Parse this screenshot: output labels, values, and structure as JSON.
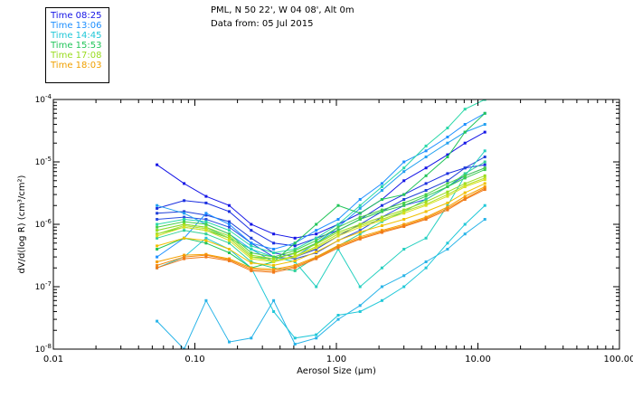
{
  "header": {
    "site": "PML, N 50 22', W 04 08', Alt 0m",
    "date": "Data from: 05 Jul 2015"
  },
  "legend": [
    {
      "label": "Time 08:25",
      "color": "#1414e6"
    },
    {
      "label": "Time 13:06",
      "color": "#1e90ff"
    },
    {
      "label": "Time 14:45",
      "color": "#20c8d8"
    },
    {
      "label": "Time 15:53",
      "color": "#22c55a"
    },
    {
      "label": "Time 17:08",
      "color": "#9adc1e"
    },
    {
      "label": "Time 18:03",
      "color": "#f0a000"
    }
  ],
  "chart_data": {
    "type": "line",
    "title": "",
    "xlabel": "Aerosol Size (μm)",
    "ylabel": "dV/d(log R) (cm³/cm²)",
    "xscale": "log",
    "yscale": "log",
    "xlim": [
      0.01,
      100
    ],
    "ylim": [
      1e-08,
      0.0001
    ],
    "xtick_labels": [
      "0.01",
      "0.10",
      "1.00",
      "10.00",
      "100.00"
    ],
    "ytick_labels": [
      {
        "base": "10",
        "exp": "-8"
      },
      {
        "base": "10",
        "exp": "-7"
      },
      {
        "base": "10",
        "exp": "-6"
      },
      {
        "base": "10",
        "exp": "-5"
      },
      {
        "base": "10",
        "exp": "-4"
      }
    ],
    "x": [
      0.054,
      0.084,
      0.12,
      0.175,
      0.25,
      0.36,
      0.51,
      0.72,
      1.03,
      1.47,
      2.1,
      3.0,
      4.3,
      6.1,
      8.1,
      11.2
    ],
    "series": [
      {
        "name": "Time 08:25",
        "color": "#1414e6",
        "values": [
          9e-06,
          4.5e-06,
          2.8e-06,
          2e-06,
          1e-06,
          7e-07,
          6e-07,
          7e-07,
          1e-06,
          1.5e-06,
          2.5e-06,
          5e-06,
          8e-06,
          1.3e-05,
          2e-05,
          3e-05
        ]
      },
      {
        "name": "Time 08:25",
        "color": "#1a2ee0",
        "values": [
          1.8e-06,
          2.4e-06,
          2.2e-06,
          1.6e-06,
          8e-07,
          5e-07,
          4.5e-07,
          6e-07,
          8e-07,
          1.2e-06,
          2e-06,
          3e-06,
          4.5e-06,
          6.5e-06,
          8e-06,
          9e-06
        ]
      },
      {
        "name": "Time 08:25",
        "color": "#2040d8",
        "values": [
          1.5e-06,
          1.6e-06,
          1.4e-06,
          1.1e-06,
          6e-07,
          3.5e-07,
          3e-07,
          4e-07,
          6.5e-07,
          1e-06,
          1.6e-06,
          2.5e-06,
          3.5e-06,
          5e-06,
          8e-06,
          1.2e-05
        ]
      },
      {
        "name": "Time 08:25",
        "color": "#2c4fe0",
        "values": [
          1.2e-06,
          1.3e-06,
          1.2e-06,
          9e-07,
          5e-07,
          3e-07,
          2.8e-07,
          3.5e-07,
          5.5e-07,
          8e-07,
          1.3e-06,
          2e-06,
          2.5e-06,
          4e-06,
          6e-06,
          8e-06
        ]
      },
      {
        "name": "Time 13:06",
        "color": "#1e90ff",
        "values": [
          3e-07,
          6e-07,
          1.5e-06,
          1e-06,
          5e-07,
          4e-07,
          5e-07,
          8e-07,
          1.2e-06,
          2.5e-06,
          4.5e-06,
          1e-05,
          1.5e-05,
          2.5e-05,
          4e-05,
          6e-05
        ]
      },
      {
        "name": "Time 13:06",
        "color": "#22a0f0",
        "values": [
          2e-06,
          1.5e-06,
          1e-06,
          7e-07,
          4e-07,
          2.5e-07,
          3e-07,
          5e-07,
          9e-07,
          1.8e-06,
          3.5e-06,
          7e-06,
          1.2e-05,
          2e-05,
          3e-05,
          4e-05
        ]
      },
      {
        "name": "Time 13:06",
        "color": "#28b4e8",
        "values": [
          2.8e-08,
          1e-08,
          6e-08,
          1.3e-08,
          1.5e-08,
          6e-08,
          1.2e-08,
          1.5e-08,
          3e-08,
          5e-08,
          1e-07,
          1.5e-07,
          2.5e-07,
          4e-07,
          7e-07,
          1.2e-06
        ]
      },
      {
        "name": "Time 14:45",
        "color": "#20c8d8",
        "values": [
          2e-07,
          3e-07,
          6e-07,
          4e-07,
          2e-07,
          4e-08,
          1.5e-08,
          1.7e-08,
          3.5e-08,
          4e-08,
          6e-08,
          1e-07,
          2e-07,
          5e-07,
          1e-06,
          2e-06
        ]
      },
      {
        "name": "Time 14:45",
        "color": "#26d0c0",
        "values": [
          8e-07,
          1e-06,
          9e-07,
          6e-07,
          4e-07,
          3e-07,
          2.5e-07,
          1e-07,
          4e-07,
          1e-07,
          2e-07,
          4e-07,
          6e-07,
          2e-06,
          6e-06,
          1.5e-05
        ]
      },
      {
        "name": "Time 14:45",
        "color": "#2ad8a8",
        "values": [
          1e-06,
          1.2e-06,
          1.1e-06,
          8e-07,
          4.5e-07,
          3.5e-07,
          4e-07,
          6e-07,
          1e-06,
          2e-06,
          4e-06,
          8e-06,
          1.8e-05,
          3.5e-05,
          7e-05,
          0.0001
        ]
      },
      {
        "name": "Time 14:45",
        "color": "#30d098",
        "values": [
          6e-07,
          8e-07,
          7e-07,
          5e-07,
          2.5e-07,
          2e-07,
          1.8e-07,
          3e-07,
          4.5e-07,
          7e-07,
          1.1e-06,
          1.6e-06,
          2.5e-06,
          4e-06,
          6.5e-06,
          1e-05
        ]
      },
      {
        "name": "Time 15:53",
        "color": "#22c55a",
        "values": [
          4e-07,
          6e-07,
          5e-07,
          3.5e-07,
          2e-07,
          2.5e-07,
          5e-07,
          1e-06,
          2e-06,
          1.5e-06,
          2.5e-06,
          3e-06,
          6e-06,
          1.2e-05,
          3e-05,
          6e-05
        ]
      },
      {
        "name": "Time 15:53",
        "color": "#36cc50",
        "values": [
          7e-07,
          9e-07,
          8e-07,
          6e-07,
          3e-07,
          2.8e-07,
          3.5e-07,
          5e-07,
          8e-07,
          1.2e-06,
          1.6e-06,
          2e-06,
          2.8e-06,
          4e-06,
          5.5e-06,
          7.5e-06
        ]
      },
      {
        "name": "Time 15:53",
        "color": "#48d048",
        "values": [
          9e-07,
          1.1e-06,
          1e-06,
          7e-07,
          3.5e-07,
          3e-07,
          3.8e-07,
          5.5e-07,
          9e-07,
          1.3e-06,
          1.7e-06,
          2.2e-06,
          3e-06,
          4.5e-06,
          6e-06,
          8e-06
        ]
      },
      {
        "name": "Time 17:08",
        "color": "#9adc1e",
        "values": [
          8e-07,
          1e-06,
          9e-07,
          6.5e-07,
          3.2e-07,
          2.8e-07,
          3.4e-07,
          4.8e-07,
          7.5e-07,
          1e-06,
          1.3e-06,
          1.7e-06,
          2.3e-06,
          3.3e-06,
          4.5e-06,
          6e-06
        ]
      },
      {
        "name": "Time 17:08",
        "color": "#b4e020",
        "values": [
          7e-07,
          9.5e-07,
          8.5e-07,
          6e-07,
          3e-07,
          2.6e-07,
          3.1e-07,
          4.4e-07,
          7e-07,
          9.5e-07,
          1.2e-06,
          1.6e-06,
          2.1e-06,
          3e-06,
          4.2e-06,
          5.5e-06
        ]
      },
      {
        "name": "Time 17:08",
        "color": "#d8e020",
        "values": [
          6.5e-07,
          9e-07,
          8e-07,
          5.5e-07,
          2.8e-07,
          2.5e-07,
          3e-07,
          4.2e-07,
          6.5e-07,
          9e-07,
          1.15e-06,
          1.5e-06,
          2e-06,
          2.8e-06,
          4e-06,
          5.2e-06
        ]
      },
      {
        "name": "Time 18:03",
        "color": "#f0c000",
        "values": [
          4.5e-07,
          6e-07,
          5.5e-07,
          4e-07,
          2.4e-07,
          2.2e-07,
          2.6e-07,
          3.6e-07,
          5.5e-07,
          7.5e-07,
          9.5e-07,
          1.2e-06,
          1.6e-06,
          2.2e-06,
          3.2e-06,
          4.5e-06
        ]
      },
      {
        "name": "Time 18:03",
        "color": "#f5a000",
        "values": [
          2.5e-07,
          3.2e-07,
          3.3e-07,
          2.8e-07,
          2e-07,
          1.9e-07,
          2.2e-07,
          3e-07,
          4.6e-07,
          6.3e-07,
          8e-07,
          1e-06,
          1.3e-06,
          1.9e-06,
          2.8e-06,
          4e-06
        ]
      },
      {
        "name": "Time 18:03",
        "color": "#f58a10",
        "values": [
          2.2e-07,
          3e-07,
          3.2e-07,
          2.7e-07,
          1.9e-07,
          1.8e-07,
          2.1e-07,
          2.9e-07,
          4.4e-07,
          6e-07,
          7.7e-07,
          9.5e-07,
          1.25e-06,
          1.8e-06,
          2.6e-06,
          3.8e-06
        ]
      },
      {
        "name": "Time 18:03",
        "color": "#f07818",
        "values": [
          2e-07,
          2.8e-07,
          3e-07,
          2.6e-07,
          1.8e-07,
          1.7e-07,
          2e-07,
          2.8e-07,
          4.2e-07,
          5.8e-07,
          7.4e-07,
          9.2e-07,
          1.2e-06,
          1.7e-06,
          2.5e-06,
          3.6e-06
        ]
      }
    ]
  }
}
